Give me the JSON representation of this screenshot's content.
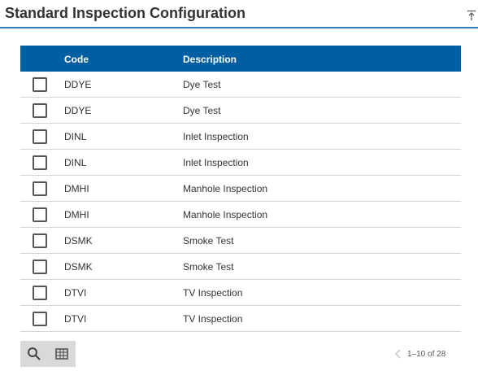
{
  "header": {
    "title": "Standard Inspection Configuration"
  },
  "table": {
    "columns": {
      "code": "Code",
      "description": "Description"
    },
    "rows": [
      {
        "code": "DDYE",
        "description": "Dye Test"
      },
      {
        "code": "DDYE",
        "description": "Dye Test"
      },
      {
        "code": "DINL",
        "description": "Inlet Inspection"
      },
      {
        "code": "DINL",
        "description": "Inlet Inspection"
      },
      {
        "code": "DMHI",
        "description": "Manhole Inspection"
      },
      {
        "code": "DMHI",
        "description": "Manhole Inspection"
      },
      {
        "code": "DSMK",
        "description": "Smoke Test"
      },
      {
        "code": "DSMK",
        "description": "Smoke Test"
      },
      {
        "code": "DTVI",
        "description": "TV Inspection"
      },
      {
        "code": "DTVI",
        "description": "TV Inspection"
      }
    ]
  },
  "footer": {
    "tools": [
      "search-icon",
      "grid-icon"
    ],
    "pager": {
      "range": "1–10 of 28"
    }
  },
  "colors": {
    "header_bg": "#005ea2",
    "accent_line": "#2f7fc1"
  }
}
